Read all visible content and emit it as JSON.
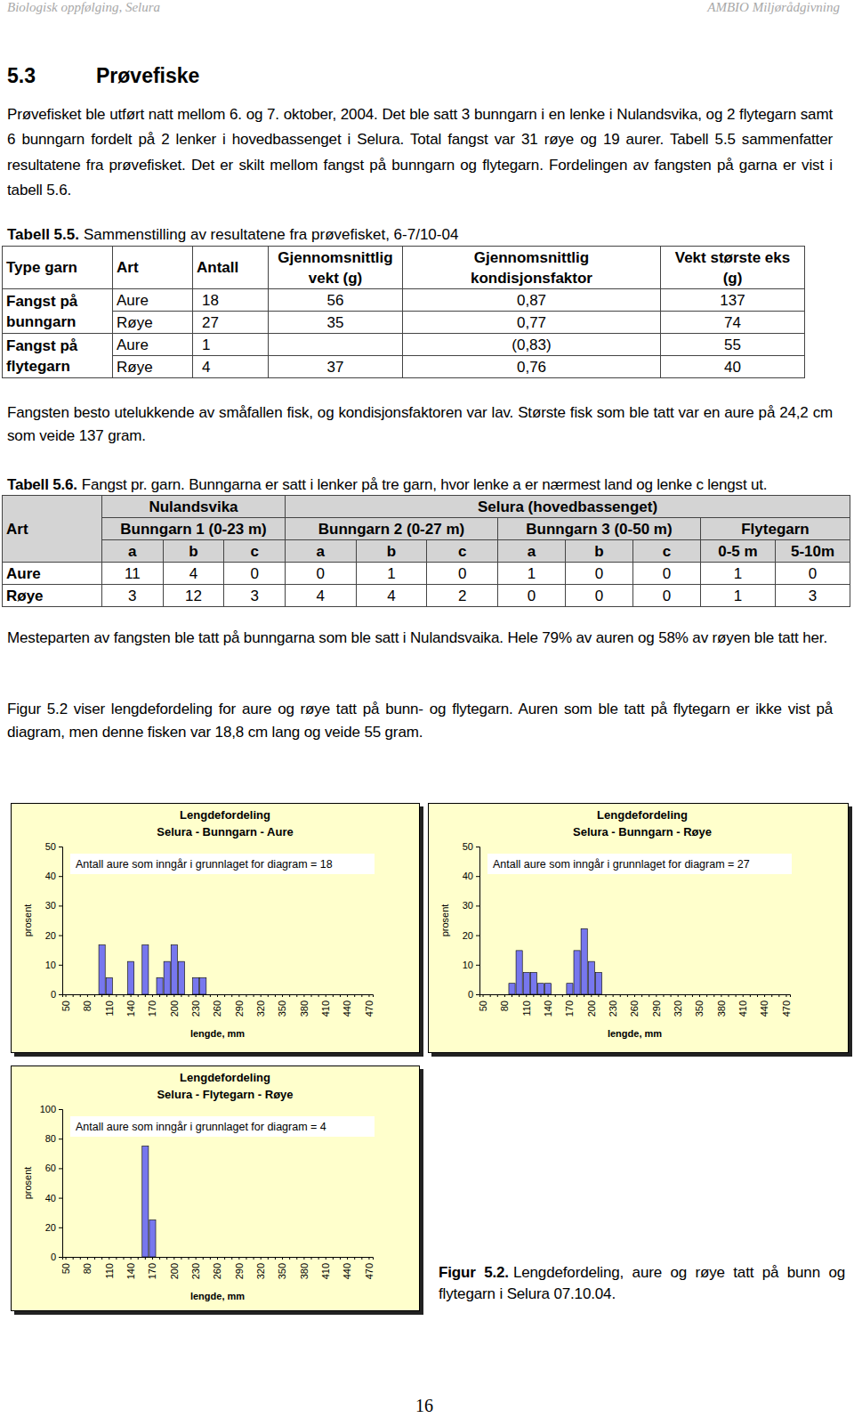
{
  "header": {
    "left": "Biologisk oppfølging, Selura",
    "right": "AMBIO Miljørådgivning"
  },
  "section": {
    "number": "5.3",
    "title": "Prøvefiske"
  },
  "intro": "Prøvefisket ble utført natt mellom 6. og 7. oktober, 2004. Det ble satt 3 bunngarn i en lenke i Nulandsvika, og 2 flytegarn samt 6 bunngarn fordelt på 2 lenker i hovedbassenget i Selura. Total fangst var 31 røye og 19 aurer. Tabell 5.5 sammenfatter resultatene fra prøvefisket. Det er skilt mellom fangst på bunngarn og flytegarn. Fordelingen av fangsten på garna er vist i tabell 5.6.",
  "table_5_5": {
    "caption_label": "Tabell 5.5.",
    "caption_text": "Sammenstilling av resultatene fra prøvefisket, 6-7/10-04",
    "columns": [
      [
        "Type garn"
      ],
      [
        "Art"
      ],
      [
        "Antall"
      ],
      [
        "Gjennomsnittlig",
        "vekt (g)"
      ],
      [
        "Gjennomsnittlig",
        "kondisjonsfaktor"
      ],
      [
        "Vekt største eks",
        "(g)"
      ]
    ],
    "groups": [
      {
        "label": [
          "Fangst på",
          "bunngarn"
        ],
        "rows": [
          [
            "Aure",
            "18",
            "56",
            "0,87",
            "137"
          ],
          [
            "Røye",
            "27",
            "35",
            "0,77",
            "74"
          ]
        ]
      },
      {
        "label": [
          "Fangst på",
          "flytegarn"
        ],
        "rows": [
          [
            "Aure",
            "1",
            null,
            "(0,83)",
            "55"
          ],
          [
            "Røye",
            "4",
            "37",
            "0,76",
            "40"
          ]
        ]
      }
    ]
  },
  "after_table_5_5": "Fangsten besto utelukkende av småfallen fisk, og kondisjonsfaktoren var lav. Største fisk som ble tatt var en aure på 24,2 cm som veide 137 gram.",
  "table_5_6": {
    "caption_label": "Tabell 5.6.",
    "caption_text": "Fangst pr. garn. Bunngarna er satt i lenker på tre garn, hvor lenke a er nærmest land og lenke c lengst ut.",
    "art_header": "Art",
    "sites": [
      {
        "name": "Nulandsvika",
        "gear": [
          {
            "name": "Bunngarn 1 (0-23 m)",
            "columns": [
              "a",
              "b",
              "c"
            ]
          }
        ]
      },
      {
        "name": "Selura (hovedbassenget)",
        "gear": [
          {
            "name": "Bunngarn 2 (0-27 m)",
            "columns": [
              "a",
              "b",
              "c"
            ]
          },
          {
            "name": "Bunngarn 3 (0-50 m)",
            "columns": [
              "a",
              "b",
              "c"
            ]
          },
          {
            "name": "Flytegarn",
            "columns": [
              "0-5 m",
              "5-10m"
            ]
          }
        ]
      }
    ],
    "rows": [
      {
        "art": "Aure",
        "values": [
          11,
          4,
          0,
          0,
          1,
          0,
          1,
          0,
          0,
          1,
          0
        ]
      },
      {
        "art": "Røye",
        "values": [
          3,
          12,
          3,
          4,
          4,
          2,
          0,
          0,
          0,
          1,
          3
        ]
      }
    ]
  },
  "after_table_5_6": "Mesteparten av fangsten ble tatt på bunngarna som ble satt i Nulandsvaika. Hele 79% av auren og 58% av røyen ble tatt her.",
  "figure_text": "Figur 5.2 viser lengdefordeling for aure og røye tatt på bunn- og flytegarn. Auren som ble tatt på flytegarn er ikke vist på diagram, men denne fisken var 18,8 cm lang og veide 55 gram.",
  "chart_data": [
    {
      "type": "bar",
      "title": "Lengdefordeling",
      "subtitle": "Selura - Bunngarn - Aure",
      "annotation": "Antall aure som inngår i grunnlaget for diagram = 18",
      "x_label": "lengde, mm",
      "y_label": "prosent",
      "categories": [
        50,
        null,
        null,
        80,
        null,
        null,
        110,
        null,
        null,
        140,
        null,
        null,
        170,
        null,
        null,
        200,
        null,
        null,
        230,
        null,
        null,
        260,
        null,
        null,
        290,
        null,
        null,
        320,
        null,
        null,
        350,
        null,
        null,
        380,
        null,
        null,
        410,
        null,
        null,
        440,
        null,
        null,
        470
      ],
      "values": [
        0,
        0,
        0,
        0,
        0,
        16.7,
        5.6,
        0,
        0,
        11.1,
        0,
        16.7,
        0,
        5.6,
        11.1,
        16.7,
        11.1,
        0,
        5.6,
        5.6,
        0,
        0,
        0,
        0,
        0,
        0,
        0,
        0,
        0,
        0,
        0,
        0,
        0,
        0,
        0,
        0,
        0,
        0,
        0,
        0,
        0,
        0,
        0
      ],
      "color": "#7777ee",
      "ylim": [
        0,
        50
      ],
      "yticks": [
        0,
        10,
        20,
        30,
        40,
        50
      ],
      "grid": false
    },
    {
      "type": "bar",
      "title": "Lengdefordeling",
      "subtitle": "Selura - Bunngarn - Røye",
      "annotation": "Antall aure som inngår i grunnlaget for diagram = 27",
      "x_label": "lengde, mm",
      "y_label": "prosent",
      "categories": [
        50,
        null,
        null,
        80,
        null,
        null,
        110,
        null,
        null,
        140,
        null,
        null,
        170,
        null,
        null,
        200,
        null,
        null,
        230,
        null,
        null,
        260,
        null,
        null,
        290,
        null,
        null,
        320,
        null,
        null,
        350,
        null,
        null,
        380,
        null,
        null,
        410,
        null,
        null,
        440,
        null,
        null,
        470
      ],
      "values": [
        0,
        0,
        0,
        0,
        3.7,
        14.8,
        7.4,
        7.4,
        3.7,
        3.7,
        0,
        0,
        3.7,
        14.8,
        22.2,
        11.1,
        7.4,
        0,
        0,
        0,
        0,
        0,
        0,
        0,
        0,
        0,
        0,
        0,
        0,
        0,
        0,
        0,
        0,
        0,
        0,
        0,
        0,
        0,
        0,
        0,
        0,
        0,
        0
      ],
      "color": "#7777ee",
      "ylim": [
        0,
        50
      ],
      "yticks": [
        0,
        10,
        20,
        30,
        40,
        50
      ],
      "grid": false
    },
    {
      "type": "bar",
      "title": "Lengdefordeling",
      "subtitle": "Selura - Flytegarn - Røye",
      "annotation": "Antall aure som inngår i grunnlaget for diagram = 4",
      "x_label": "lengde, mm",
      "y_label": "prosent",
      "categories": [
        50,
        null,
        null,
        80,
        null,
        null,
        110,
        null,
        null,
        140,
        null,
        null,
        170,
        null,
        null,
        200,
        null,
        null,
        230,
        null,
        null,
        260,
        null,
        null,
        290,
        null,
        null,
        320,
        null,
        null,
        350,
        null,
        null,
        380,
        null,
        null,
        410,
        null,
        null,
        440,
        null,
        null,
        470
      ],
      "values": [
        0,
        0,
        0,
        0,
        0,
        0,
        0,
        0,
        0,
        0,
        0,
        75,
        25,
        0,
        0,
        0,
        0,
        0,
        0,
        0,
        0,
        0,
        0,
        0,
        0,
        0,
        0,
        0,
        0,
        0,
        0,
        0,
        0,
        0,
        0,
        0,
        0,
        0,
        0,
        0,
        0,
        0,
        0
      ],
      "color": "#7777ee",
      "ylim": [
        0,
        100
      ],
      "yticks": [
        0,
        20,
        40,
        60,
        80,
        100
      ],
      "grid": false
    }
  ],
  "figure_caption": {
    "label": "Figur 5.2.",
    "text": "Lengdefordeling, aure og røye tatt på bunn og flytegarn i Selura 07.10.04."
  },
  "page_number": "16"
}
